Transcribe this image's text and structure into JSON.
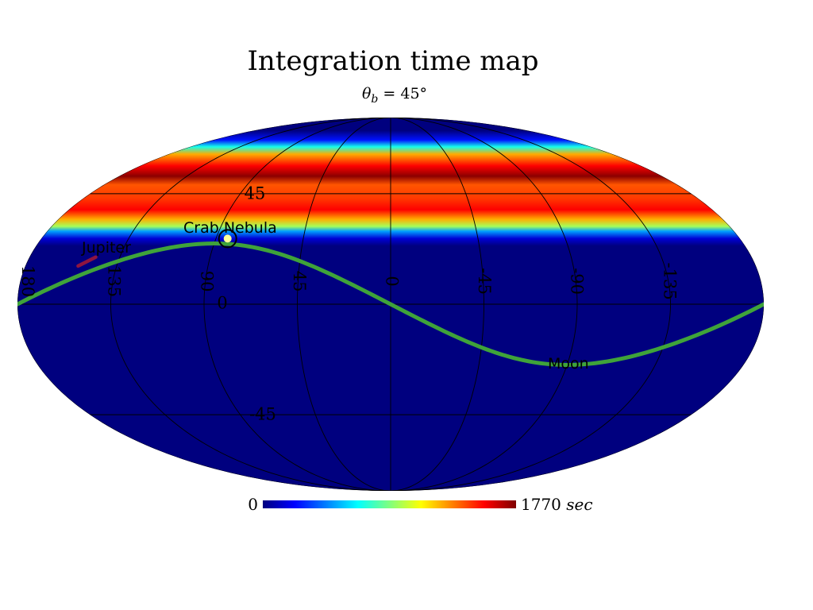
{
  "title": "Integration time map",
  "subtitle": {
    "symbol": "θ",
    "subscript": "b",
    "rest": " = 45°"
  },
  "projection": "mollweide",
  "center_longitude": 0,
  "longitude_direction": "increasing to the left",
  "colormap": {
    "name": "jet",
    "stops": [
      "#00007f",
      "#0000ff",
      "#007fff",
      "#00ffff",
      "#7fff7f",
      "#ffff00",
      "#ff7f00",
      "#ff0000",
      "#7f0000"
    ]
  },
  "exposure_band": {
    "description": "integration time as a function of latitude",
    "latitude_profile": [
      {
        "lat": 90,
        "value": 0
      },
      {
        "lat": 78,
        "value": 0
      },
      {
        "lat": 72,
        "value": 250
      },
      {
        "lat": 68,
        "value": 700
      },
      {
        "lat": 64,
        "value": 1250
      },
      {
        "lat": 58,
        "value": 1550
      },
      {
        "lat": 53,
        "value": 1750
      },
      {
        "lat": 49,
        "value": 1400
      },
      {
        "lat": 43,
        "value": 1450
      },
      {
        "lat": 38,
        "value": 1550
      },
      {
        "lat": 34,
        "value": 1250
      },
      {
        "lat": 31,
        "value": 950
      },
      {
        "lat": 29,
        "value": 500
      },
      {
        "lat": 26,
        "value": 150
      },
      {
        "lat": 23,
        "value": 0
      },
      {
        "lat": -90,
        "value": 0
      }
    ]
  },
  "graticule": {
    "meridians": [
      180,
      135,
      90,
      45,
      0,
      -45,
      -90,
      -135
    ],
    "parallels": [
      45,
      0,
      -45
    ],
    "color": "#000000"
  },
  "longitude_labels": [
    "180",
    "135",
    "90",
    "45",
    "0",
    "-45",
    "-90",
    "-135"
  ],
  "latitude_labels": [
    "45",
    "0",
    "-45"
  ],
  "moon_path": {
    "label": "Moon",
    "color": "#3fa33a",
    "amplitude_deg": 24,
    "crossing_lon": 0
  },
  "jupiter": {
    "label": "Jupiter",
    "color": "#8e1540",
    "track": [
      {
        "lon": 154,
        "lat": 15
      },
      {
        "lon": 147,
        "lat": 18.5
      }
    ]
  },
  "crab_nebula": {
    "label": "Crab Nebula",
    "lon": 84,
    "lat": 26,
    "marker_fill": "#ffff99"
  },
  "colorbar": {
    "min_label": "0",
    "max_value": "1770",
    "unit": "sec",
    "min": 0,
    "max": 1770
  }
}
